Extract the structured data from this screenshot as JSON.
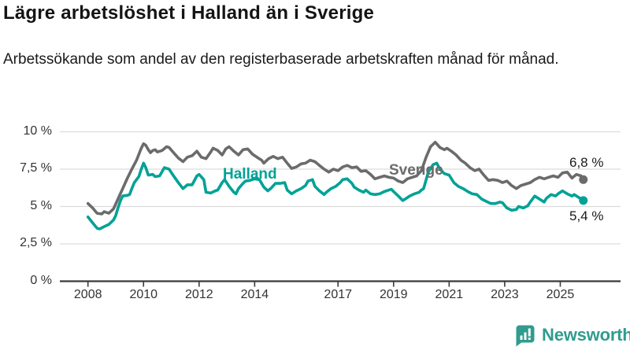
{
  "header": {
    "title": "Lägre arbetslöshet i Halland än i Sverige",
    "subtitle": "Arbetssökande som andel av den registerbaserade arbetskraften månad för månad."
  },
  "footer": {
    "brand": "Newsworthy"
  },
  "colors": {
    "grid": "#dcdcdc",
    "axis": "#3a3a3a",
    "tick_text": "#333333",
    "halland_teal": "#00a296",
    "sverige_gray": "#6b6b6b",
    "logo_teal": "#2f9c8e"
  },
  "chart_data": {
    "type": "line",
    "title": "Lägre arbetslöshet i Halland än i Sverige",
    "subtitle": "Arbetssökande som andel av den registerbaserade arbetskraften månad för månad.",
    "x_unit": "year_decimal",
    "xlim": [
      2008,
      2026.3
    ],
    "ylim": [
      0,
      10
    ],
    "grid": true,
    "legend_position": "inline-labels",
    "y_ticks": [
      {
        "value": 0,
        "label": "0 %"
      },
      {
        "value": 2.5,
        "label": "2,5 %"
      },
      {
        "value": 5,
        "label": "5 %"
      },
      {
        "value": 7.5,
        "label": "7,5 %"
      },
      {
        "value": 10,
        "label": "10 %"
      }
    ],
    "x_ticks": [
      {
        "value": 2008,
        "label": "2008"
      },
      {
        "value": 2010,
        "label": "2010"
      },
      {
        "value": 2012,
        "label": "2012"
      },
      {
        "value": 2014,
        "label": "2014"
      },
      {
        "value": 2017,
        "label": "2017"
      },
      {
        "value": 2019,
        "label": "2019"
      },
      {
        "value": 2021,
        "label": "2021"
      },
      {
        "value": 2023,
        "label": "2023"
      },
      {
        "value": 2025,
        "label": "2025"
      }
    ],
    "series": [
      {
        "name": "Sverige",
        "color": "#6b6b6b",
        "end_label": "6,8 %",
        "end_value": 6.8,
        "points": [
          [
            2008.0,
            5.2
          ],
          [
            2008.17,
            4.9
          ],
          [
            2008.33,
            4.55
          ],
          [
            2008.5,
            4.5
          ],
          [
            2008.58,
            4.65
          ],
          [
            2008.75,
            4.55
          ],
          [
            2008.92,
            4.85
          ],
          [
            2009.08,
            5.5
          ],
          [
            2009.25,
            6.2
          ],
          [
            2009.42,
            6.9
          ],
          [
            2009.58,
            7.5
          ],
          [
            2009.75,
            8.1
          ],
          [
            2009.92,
            8.9
          ],
          [
            2010.0,
            9.2
          ],
          [
            2010.08,
            9.1
          ],
          [
            2010.17,
            8.8
          ],
          [
            2010.25,
            8.6
          ],
          [
            2010.33,
            8.75
          ],
          [
            2010.42,
            8.8
          ],
          [
            2010.5,
            8.65
          ],
          [
            2010.67,
            8.75
          ],
          [
            2010.83,
            9.0
          ],
          [
            2010.92,
            8.95
          ],
          [
            2011.08,
            8.6
          ],
          [
            2011.25,
            8.25
          ],
          [
            2011.42,
            8.0
          ],
          [
            2011.58,
            8.3
          ],
          [
            2011.75,
            8.4
          ],
          [
            2011.92,
            8.7
          ],
          [
            2012.08,
            8.3
          ],
          [
            2012.25,
            8.2
          ],
          [
            2012.42,
            8.65
          ],
          [
            2012.5,
            8.9
          ],
          [
            2012.67,
            8.75
          ],
          [
            2012.83,
            8.45
          ],
          [
            2012.96,
            8.85
          ],
          [
            2013.08,
            9.0
          ],
          [
            2013.25,
            8.7
          ],
          [
            2013.42,
            8.45
          ],
          [
            2013.58,
            8.8
          ],
          [
            2013.75,
            8.85
          ],
          [
            2013.92,
            8.5
          ],
          [
            2014.08,
            8.3
          ],
          [
            2014.25,
            8.1
          ],
          [
            2014.33,
            7.9
          ],
          [
            2014.5,
            8.2
          ],
          [
            2014.67,
            8.35
          ],
          [
            2014.83,
            8.2
          ],
          [
            2015.0,
            8.3
          ],
          [
            2015.17,
            7.9
          ],
          [
            2015.33,
            7.55
          ],
          [
            2015.5,
            7.65
          ],
          [
            2015.67,
            7.85
          ],
          [
            2015.83,
            7.9
          ],
          [
            2016.0,
            8.1
          ],
          [
            2016.17,
            8.0
          ],
          [
            2016.33,
            7.75
          ],
          [
            2016.5,
            7.5
          ],
          [
            2016.67,
            7.3
          ],
          [
            2016.83,
            7.5
          ],
          [
            2017.0,
            7.4
          ],
          [
            2017.17,
            7.65
          ],
          [
            2017.33,
            7.75
          ],
          [
            2017.5,
            7.6
          ],
          [
            2017.67,
            7.65
          ],
          [
            2017.83,
            7.35
          ],
          [
            2018.0,
            7.4
          ],
          [
            2018.17,
            7.15
          ],
          [
            2018.33,
            6.85
          ],
          [
            2018.5,
            6.95
          ],
          [
            2018.67,
            7.05
          ],
          [
            2018.83,
            6.95
          ],
          [
            2019.0,
            6.9
          ],
          [
            2019.17,
            6.7
          ],
          [
            2019.33,
            6.6
          ],
          [
            2019.5,
            6.85
          ],
          [
            2019.67,
            6.95
          ],
          [
            2019.83,
            7.05
          ],
          [
            2020.0,
            7.4
          ],
          [
            2020.17,
            8.3
          ],
          [
            2020.33,
            9.0
          ],
          [
            2020.5,
            9.3
          ],
          [
            2020.67,
            8.95
          ],
          [
            2020.83,
            8.8
          ],
          [
            2020.92,
            8.9
          ],
          [
            2021.08,
            8.7
          ],
          [
            2021.25,
            8.45
          ],
          [
            2021.42,
            8.1
          ],
          [
            2021.58,
            7.9
          ],
          [
            2021.75,
            7.6
          ],
          [
            2021.92,
            7.4
          ],
          [
            2022.08,
            7.5
          ],
          [
            2022.25,
            7.1
          ],
          [
            2022.42,
            6.75
          ],
          [
            2022.58,
            6.8
          ],
          [
            2022.75,
            6.75
          ],
          [
            2022.92,
            6.6
          ],
          [
            2023.08,
            6.7
          ],
          [
            2023.25,
            6.4
          ],
          [
            2023.42,
            6.2
          ],
          [
            2023.58,
            6.4
          ],
          [
            2023.75,
            6.5
          ],
          [
            2023.92,
            6.6
          ],
          [
            2024.08,
            6.8
          ],
          [
            2024.25,
            6.95
          ],
          [
            2024.42,
            6.85
          ],
          [
            2024.58,
            6.95
          ],
          [
            2024.75,
            7.05
          ],
          [
            2024.92,
            6.95
          ],
          [
            2025.08,
            7.25
          ],
          [
            2025.25,
            7.3
          ],
          [
            2025.42,
            6.9
          ],
          [
            2025.58,
            7.15
          ],
          [
            2025.75,
            7.05
          ],
          [
            2025.83,
            6.8
          ]
        ]
      },
      {
        "name": "Halland",
        "color": "#00a296",
        "end_label": "5,4 %",
        "end_value": 5.4,
        "points": [
          [
            2008.0,
            4.3
          ],
          [
            2008.17,
            3.9
          ],
          [
            2008.33,
            3.55
          ],
          [
            2008.42,
            3.5
          ],
          [
            2008.58,
            3.65
          ],
          [
            2008.75,
            3.8
          ],
          [
            2008.92,
            4.1
          ],
          [
            2009.0,
            4.4
          ],
          [
            2009.08,
            4.9
          ],
          [
            2009.17,
            5.4
          ],
          [
            2009.25,
            5.7
          ],
          [
            2009.42,
            5.75
          ],
          [
            2009.5,
            5.8
          ],
          [
            2009.58,
            6.2
          ],
          [
            2009.67,
            6.6
          ],
          [
            2009.83,
            7.0
          ],
          [
            2009.92,
            7.5
          ],
          [
            2010.0,
            7.9
          ],
          [
            2010.08,
            7.6
          ],
          [
            2010.17,
            7.1
          ],
          [
            2010.33,
            7.15
          ],
          [
            2010.42,
            7.0
          ],
          [
            2010.58,
            7.05
          ],
          [
            2010.75,
            7.6
          ],
          [
            2010.92,
            7.5
          ],
          [
            2011.08,
            7.05
          ],
          [
            2011.25,
            6.6
          ],
          [
            2011.42,
            6.2
          ],
          [
            2011.58,
            6.45
          ],
          [
            2011.75,
            6.45
          ],
          [
            2011.92,
            7.05
          ],
          [
            2012.0,
            7.15
          ],
          [
            2012.17,
            6.8
          ],
          [
            2012.25,
            5.95
          ],
          [
            2012.42,
            5.9
          ],
          [
            2012.58,
            6.05
          ],
          [
            2012.67,
            6.1
          ],
          [
            2012.83,
            6.6
          ],
          [
            2012.92,
            6.8
          ],
          [
            2013.08,
            6.35
          ],
          [
            2013.25,
            5.95
          ],
          [
            2013.33,
            5.85
          ],
          [
            2013.42,
            6.2
          ],
          [
            2013.58,
            6.55
          ],
          [
            2013.67,
            6.7
          ],
          [
            2013.83,
            6.75
          ],
          [
            2014.0,
            6.85
          ],
          [
            2014.17,
            6.8
          ],
          [
            2014.33,
            6.3
          ],
          [
            2014.47,
            6.05
          ],
          [
            2014.58,
            6.2
          ],
          [
            2014.75,
            6.55
          ],
          [
            2014.92,
            6.55
          ],
          [
            2015.08,
            6.6
          ],
          [
            2015.17,
            6.1
          ],
          [
            2015.33,
            5.85
          ],
          [
            2015.5,
            6.05
          ],
          [
            2015.67,
            6.2
          ],
          [
            2015.83,
            6.4
          ],
          [
            2015.92,
            6.7
          ],
          [
            2016.08,
            6.8
          ],
          [
            2016.17,
            6.35
          ],
          [
            2016.33,
            6.05
          ],
          [
            2016.5,
            5.8
          ],
          [
            2016.58,
            5.95
          ],
          [
            2016.75,
            6.2
          ],
          [
            2016.92,
            6.35
          ],
          [
            2017.08,
            6.6
          ],
          [
            2017.17,
            6.8
          ],
          [
            2017.33,
            6.85
          ],
          [
            2017.5,
            6.55
          ],
          [
            2017.58,
            6.3
          ],
          [
            2017.75,
            6.1
          ],
          [
            2017.92,
            5.95
          ],
          [
            2018.0,
            6.1
          ],
          [
            2018.17,
            5.85
          ],
          [
            2018.33,
            5.8
          ],
          [
            2018.5,
            5.85
          ],
          [
            2018.67,
            6.0
          ],
          [
            2018.83,
            6.1
          ],
          [
            2018.92,
            6.15
          ],
          [
            2019.0,
            6.0
          ],
          [
            2019.17,
            5.7
          ],
          [
            2019.33,
            5.4
          ],
          [
            2019.42,
            5.5
          ],
          [
            2019.58,
            5.7
          ],
          [
            2019.75,
            5.85
          ],
          [
            2019.92,
            5.95
          ],
          [
            2020.0,
            6.1
          ],
          [
            2020.08,
            6.2
          ],
          [
            2020.25,
            7.3
          ],
          [
            2020.42,
            7.8
          ],
          [
            2020.55,
            7.9
          ],
          [
            2020.67,
            7.5
          ],
          [
            2020.83,
            7.2
          ],
          [
            2021.0,
            7.1
          ],
          [
            2021.17,
            6.6
          ],
          [
            2021.33,
            6.35
          ],
          [
            2021.5,
            6.2
          ],
          [
            2021.67,
            6.0
          ],
          [
            2021.83,
            5.85
          ],
          [
            2022.0,
            5.8
          ],
          [
            2022.17,
            5.5
          ],
          [
            2022.33,
            5.35
          ],
          [
            2022.5,
            5.2
          ],
          [
            2022.67,
            5.2
          ],
          [
            2022.83,
            5.3
          ],
          [
            2022.92,
            5.25
          ],
          [
            2023.08,
            4.9
          ],
          [
            2023.25,
            4.75
          ],
          [
            2023.42,
            4.8
          ],
          [
            2023.5,
            5.0
          ],
          [
            2023.67,
            4.9
          ],
          [
            2023.83,
            5.05
          ],
          [
            2023.92,
            5.3
          ],
          [
            2024.08,
            5.7
          ],
          [
            2024.25,
            5.5
          ],
          [
            2024.42,
            5.3
          ],
          [
            2024.5,
            5.55
          ],
          [
            2024.67,
            5.8
          ],
          [
            2024.83,
            5.7
          ],
          [
            2024.92,
            5.85
          ],
          [
            2025.08,
            6.05
          ],
          [
            2025.25,
            5.85
          ],
          [
            2025.42,
            5.7
          ],
          [
            2025.5,
            5.8
          ],
          [
            2025.67,
            5.6
          ],
          [
            2025.83,
            5.4
          ]
        ]
      }
    ]
  }
}
